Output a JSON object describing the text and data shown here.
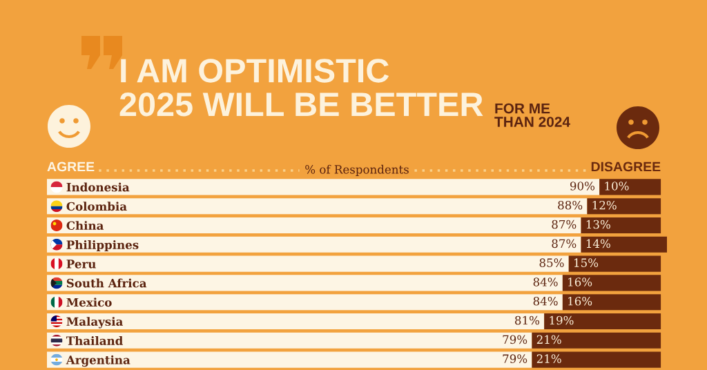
{
  "chart_data": {
    "type": "bar",
    "orientation": "horizontal",
    "stacked": true,
    "title": "I AM OPTIMISTIC\n2025 WILL BE BETTER",
    "subtitle": "FOR ME\nTHAN 2024",
    "xlabel": "% of Respondents",
    "categories": [
      "Indonesia",
      "Colombia",
      "China",
      "Philippines",
      "Peru",
      "South Africa",
      "Mexico",
      "Malaysia",
      "Thailand",
      "Argentina"
    ],
    "series": [
      {
        "name": "AGREE",
        "color": "#fdf5e4",
        "values": [
          90,
          88,
          87,
          87,
          85,
          84,
          84,
          81,
          79,
          79
        ],
        "value_labels": [
          "90%",
          "88%",
          "87%",
          "87%",
          "85%",
          "84%",
          "84%",
          "81%",
          "79%",
          "79%"
        ]
      },
      {
        "name": "DISAGREE",
        "color": "#6b2a0e",
        "values": [
          10,
          12,
          13,
          14,
          15,
          16,
          16,
          19,
          21,
          21
        ],
        "value_labels": [
          "10%",
          "12%",
          "13%",
          "14%",
          "15%",
          "16%",
          "16%",
          "19%",
          "21%",
          "21%"
        ]
      }
    ],
    "xlim": [
      0,
      101
    ],
    "tick_labels": "y"
  }
}
